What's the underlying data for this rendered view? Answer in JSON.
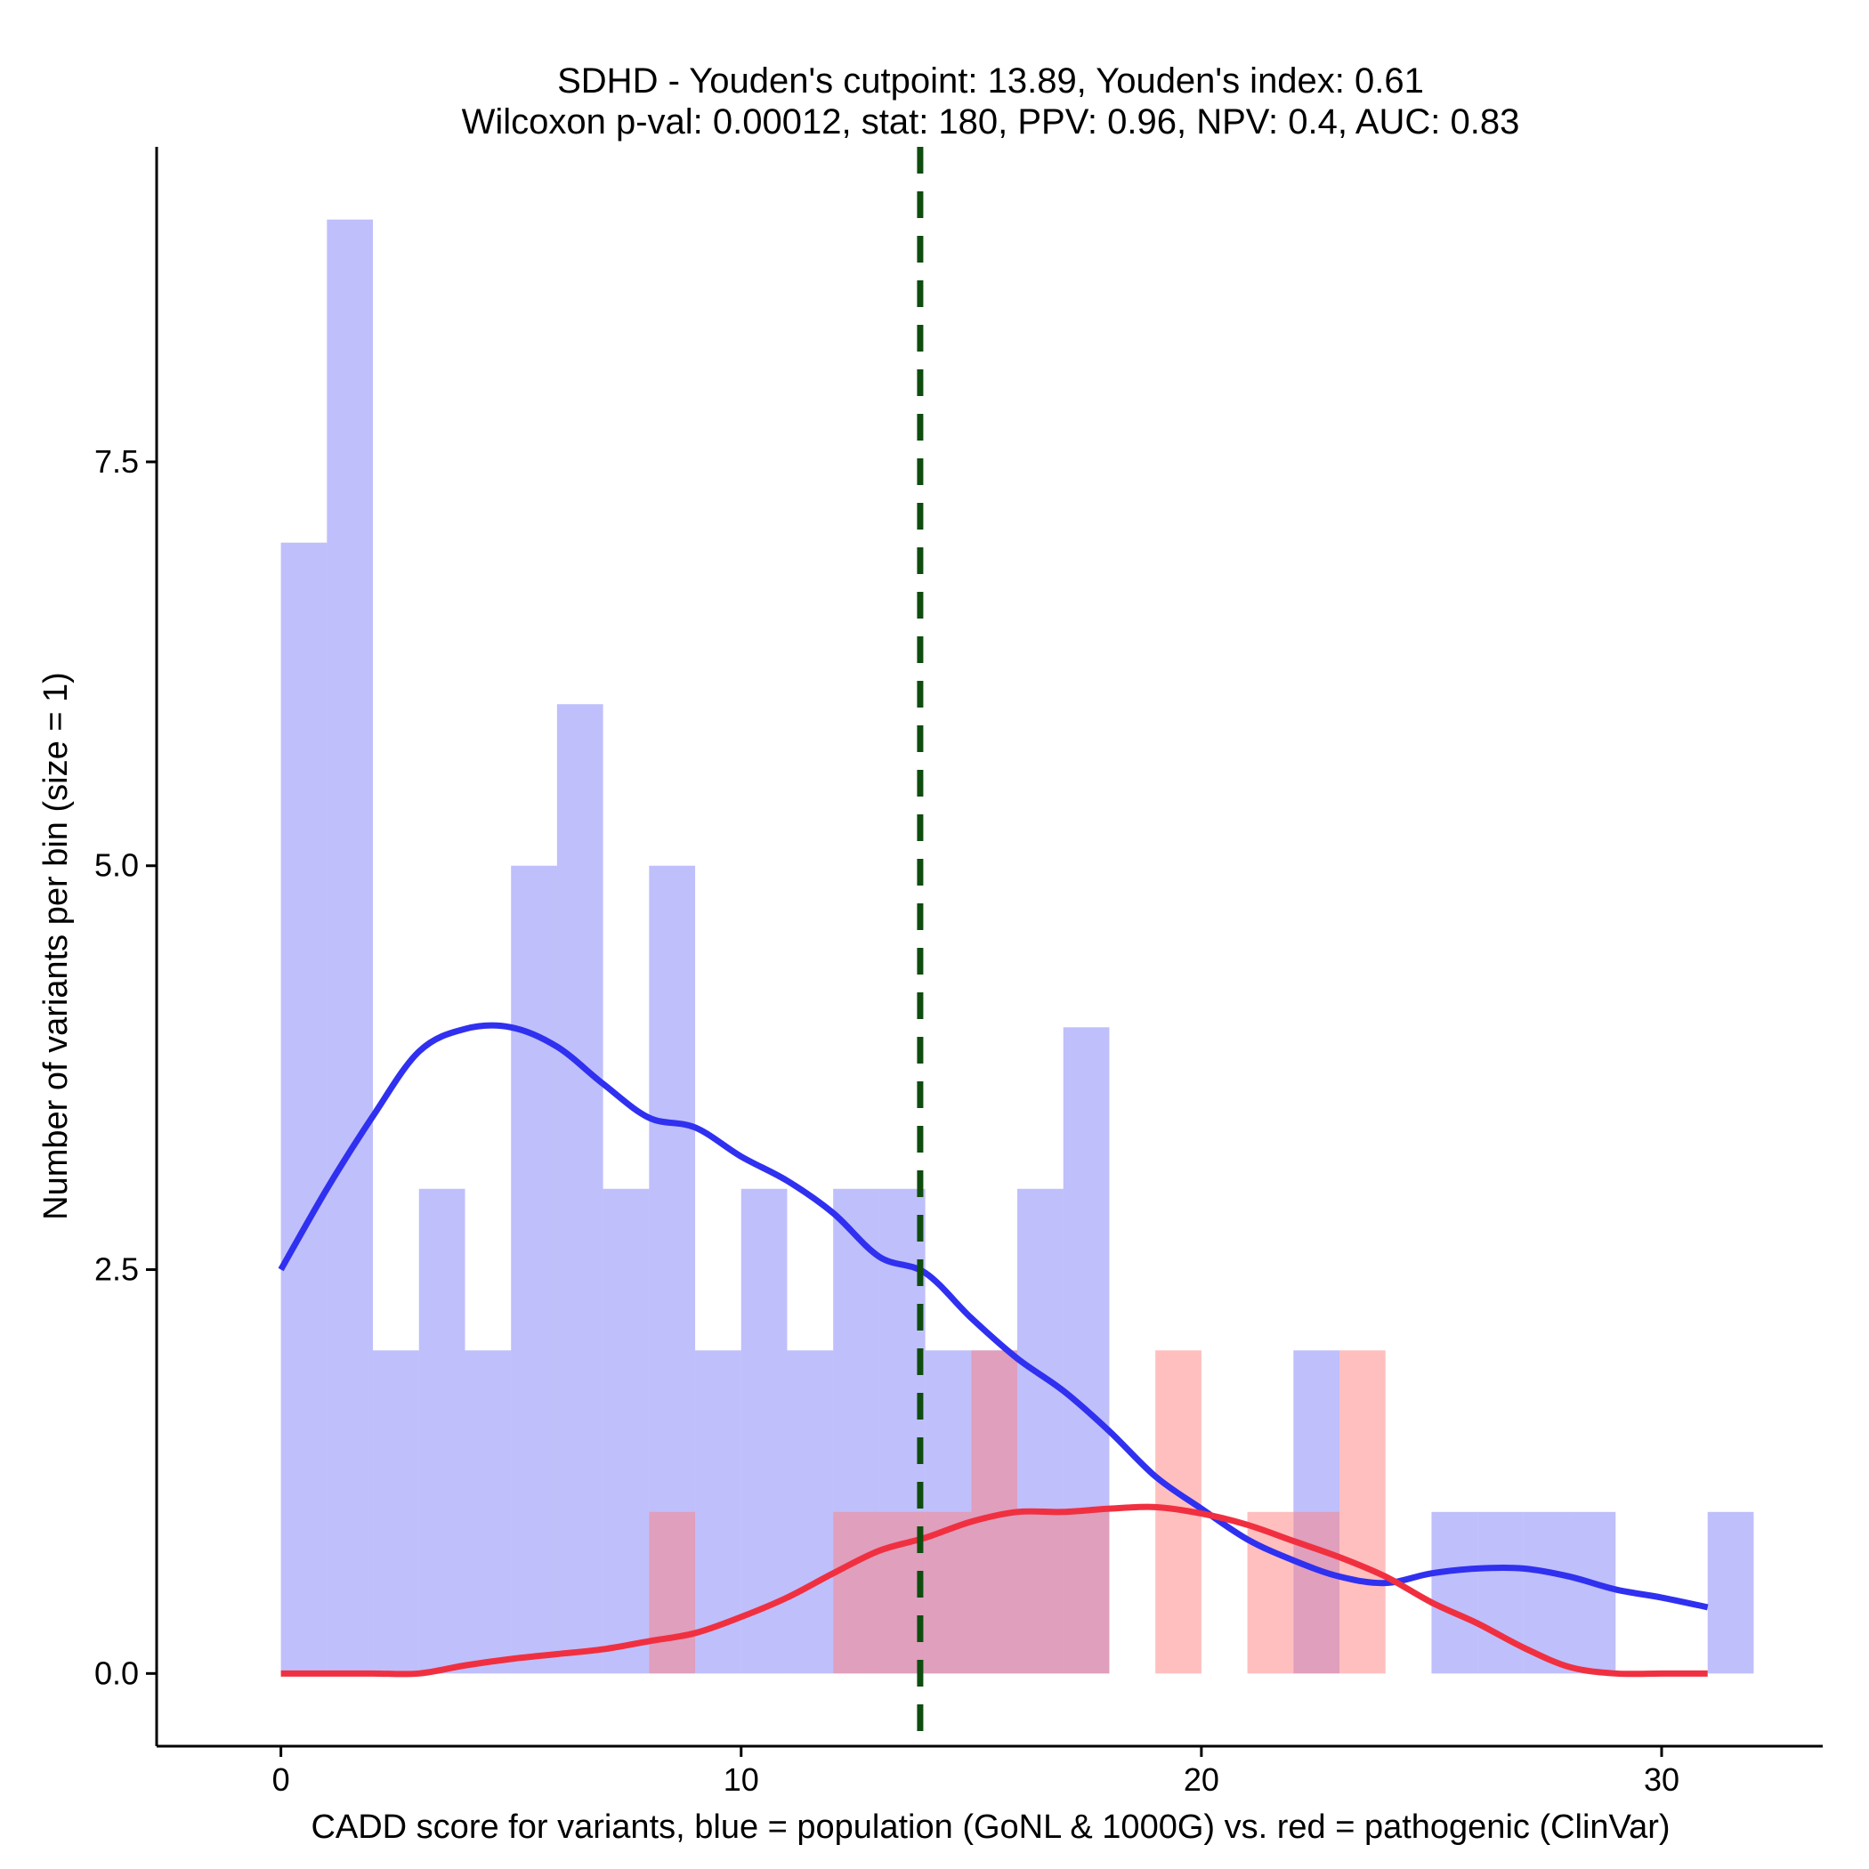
{
  "chart_data": {
    "type": "histogram",
    "title": "SDHD - Youden's cutpoint: 13.89, Youden's index: 0.61",
    "subtitle": "Wilcoxon p-val: 0.00012, stat: 180, PPV: 0.96, NPV: 0.4, AUC: 0.83",
    "xlabel": "CADD score for variants, blue = population (GoNL & 1000G) vs. red = pathogenic (ClinVar)",
    "ylabel": "Number of variants per bin (size = 1)",
    "xlim": [
      -2.7,
      33.5
    ],
    "ylim": [
      -0.45,
      9.45
    ],
    "x_ticks": [
      0,
      10,
      20,
      30
    ],
    "x_tick_labels": [
      "0",
      "10",
      "20",
      "30"
    ],
    "y_ticks": [
      0,
      2.5,
      5,
      7.5
    ],
    "y_tick_labels": [
      "0.0",
      "2.5",
      "5.0",
      "7.5"
    ],
    "bin_width": 1,
    "cutpoint": 13.89,
    "series": [
      {
        "name": "population",
        "color": "#8080F8",
        "opacity": 0.5,
        "bin_starts": [
          0,
          1,
          2,
          3,
          4,
          5,
          6,
          7,
          8,
          9,
          10,
          11,
          12,
          13,
          14,
          15,
          16,
          17,
          18,
          19,
          20,
          21,
          22,
          23,
          24,
          25,
          26,
          27,
          28,
          29,
          30,
          31
        ],
        "counts": [
          7,
          9,
          2,
          3,
          2,
          5,
          6,
          3,
          5,
          2,
          3,
          2,
          3,
          3,
          2,
          2,
          3,
          4,
          0,
          0,
          0,
          0,
          2,
          0,
          0,
          1,
          1,
          1,
          1,
          0,
          0,
          1
        ]
      },
      {
        "name": "pathogenic",
        "color": "#FF8080",
        "opacity": 0.5,
        "bin_starts": [
          8,
          12,
          13,
          14,
          15,
          16,
          17,
          19,
          21,
          22,
          23
        ],
        "counts": [
          1,
          1,
          1,
          1,
          2,
          1,
          1,
          2,
          1,
          1,
          2
        ]
      }
    ],
    "density_lines": [
      {
        "name": "population density",
        "color": "#3030F0",
        "x": [
          0,
          1,
          2,
          3,
          4,
          5,
          6,
          7,
          8,
          9,
          10,
          11,
          12,
          13,
          14,
          15,
          16,
          17,
          18,
          19,
          20,
          21,
          22,
          23,
          24,
          25,
          26,
          27,
          28,
          29,
          30,
          31
        ],
        "y": [
          2.5,
          3.0,
          3.45,
          3.85,
          3.99,
          4.0,
          3.88,
          3.65,
          3.44,
          3.38,
          3.2,
          3.05,
          2.85,
          2.58,
          2.48,
          2.2,
          1.95,
          1.75,
          1.5,
          1.22,
          1.02,
          0.83,
          0.7,
          0.6,
          0.56,
          0.62,
          0.65,
          0.65,
          0.6,
          0.52,
          0.47,
          0.41
        ]
      },
      {
        "name": "pathogenic density",
        "color": "#F03040",
        "x": [
          0,
          1,
          2,
          3,
          4,
          5,
          6,
          7,
          8,
          9,
          10,
          11,
          12,
          13,
          14,
          15,
          16,
          17,
          18,
          19,
          20,
          21,
          22,
          23,
          24,
          25,
          26,
          27,
          28,
          29,
          30,
          31
        ],
        "y": [
          0,
          0,
          0,
          0,
          0.05,
          0.09,
          0.12,
          0.15,
          0.2,
          0.25,
          0.35,
          0.47,
          0.62,
          0.76,
          0.84,
          0.94,
          1.0,
          1.0,
          1.02,
          1.03,
          0.99,
          0.92,
          0.82,
          0.72,
          0.6,
          0.44,
          0.31,
          0.16,
          0.04,
          0,
          0,
          0
        ]
      }
    ],
    "cutline_color": "#0E4D0E"
  }
}
